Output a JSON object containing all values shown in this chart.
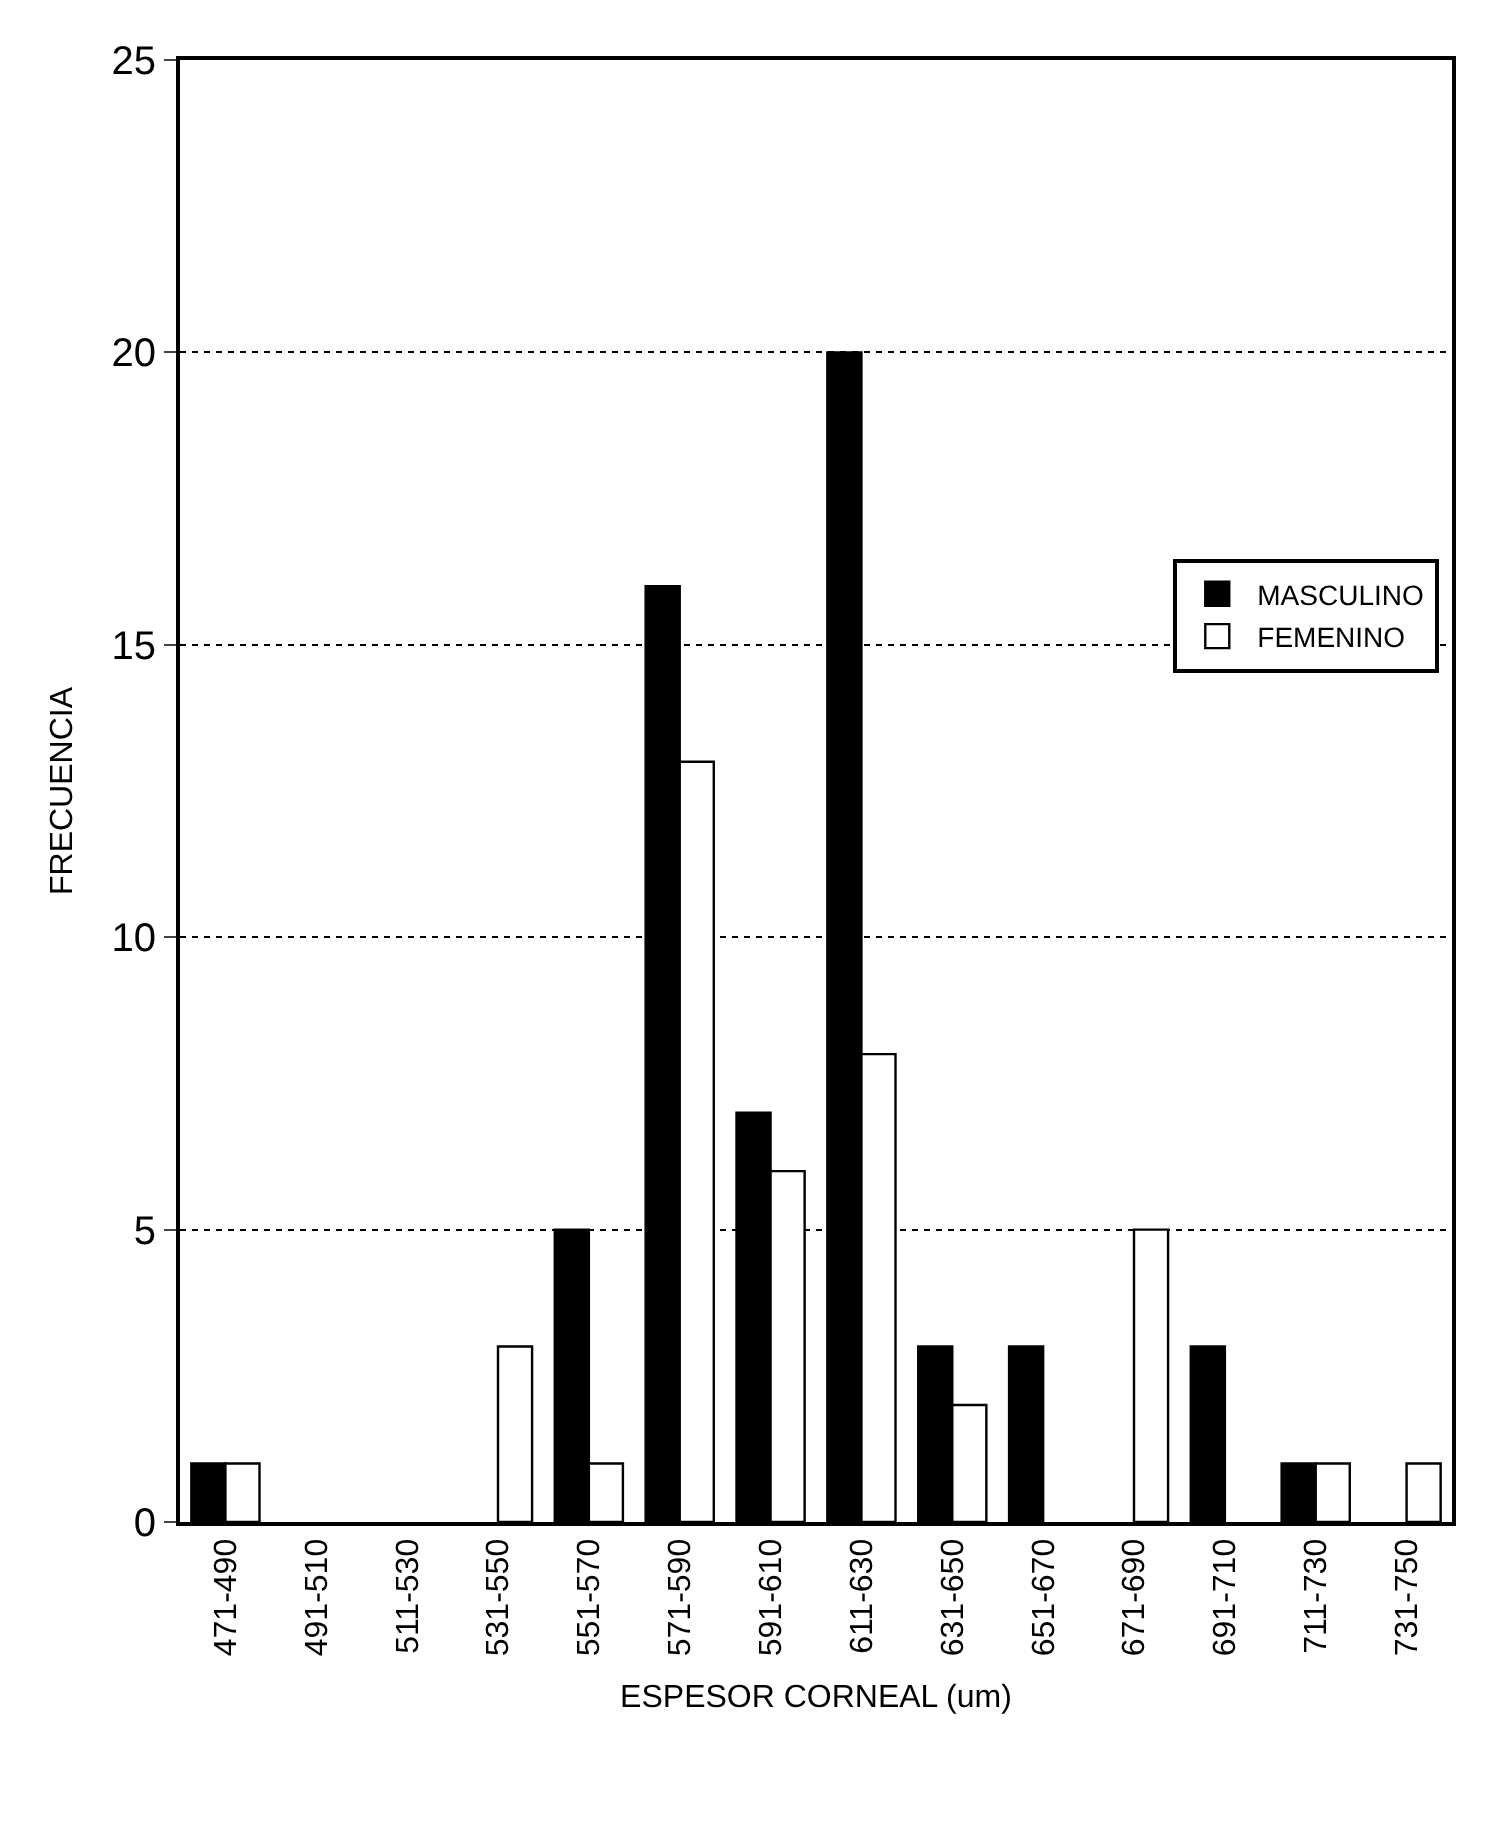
{
  "chart_data": {
    "type": "bar",
    "xlabel": "ESPESOR CORNEAL (um)",
    "ylabel": "FRECUENCIA",
    "categories": [
      "471-490",
      "491-510",
      "511-530",
      "531-550",
      "551-570",
      "571-590",
      "591-610",
      "611-630",
      "631-650",
      "651-670",
      "671-690",
      "691-710",
      "711-730",
      "731-750"
    ],
    "series": [
      {
        "name": "MASCULINO",
        "color": "#000000",
        "values": [
          1,
          0,
          0,
          0,
          5,
          16,
          7,
          20,
          3,
          3,
          0,
          3,
          1,
          0
        ]
      },
      {
        "name": "FEMENINO",
        "color": "#ffffff",
        "values": [
          1,
          0,
          0,
          3,
          1,
          13,
          6,
          8,
          2,
          0,
          5,
          0,
          1,
          1
        ]
      }
    ],
    "ylim": [
      0,
      25
    ],
    "yticks": [
      0,
      5,
      10,
      15,
      20,
      25
    ],
    "grid": "y",
    "line_style": "dotted",
    "legend": "right"
  }
}
